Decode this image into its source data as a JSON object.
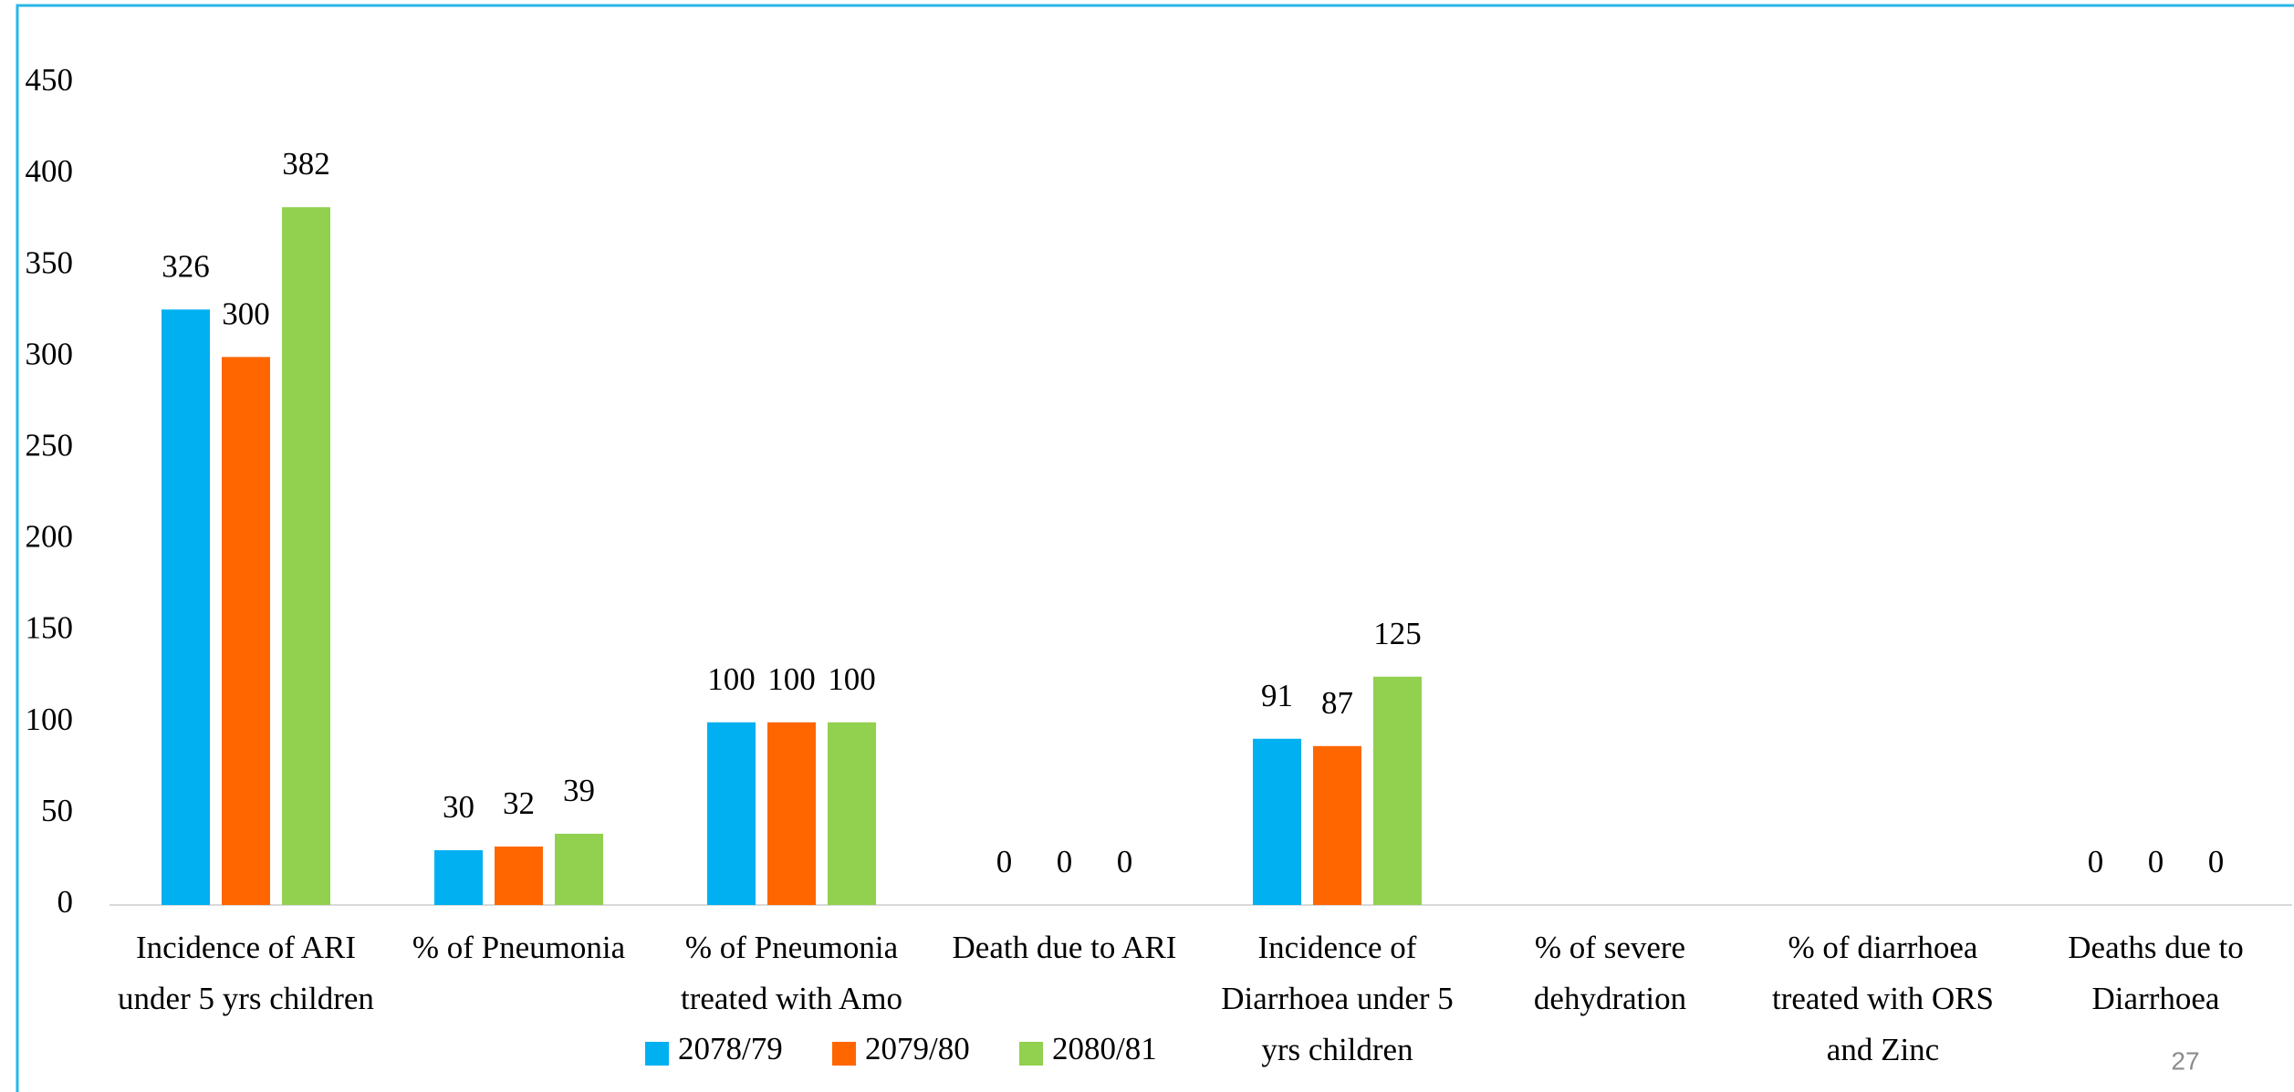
{
  "chart_data": {
    "type": "bar",
    "categories": [
      "Incidence of ARI under 5 yrs children",
      "% of Pneumonia",
      "% of Pneumonia treated with Amo",
      "Death due to ARI",
      "Incidence of Diarrhoea under 5 yrs children",
      "% of severe dehydration",
      "% of diarrhoea treated with ORS and Zinc",
      "Deaths due to Diarrhoea"
    ],
    "series": [
      {
        "name": "2078/79",
        "color": "#00b0f0",
        "values": [
          326,
          30,
          100,
          0,
          91,
          null,
          null,
          0
        ]
      },
      {
        "name": "2079/80",
        "color": "#ff6600",
        "values": [
          300,
          32,
          100,
          0,
          87,
          null,
          null,
          0
        ]
      },
      {
        "name": "2080/81",
        "color": "#92d050",
        "values": [
          382,
          39,
          100,
          0,
          125,
          null,
          null,
          0
        ]
      }
    ],
    "ylim": [
      0,
      450
    ],
    "yticks": [
      0,
      50,
      100,
      150,
      200,
      250,
      300,
      350,
      400,
      450
    ],
    "grid": false,
    "legend": "bottom"
  },
  "page_number": "27"
}
